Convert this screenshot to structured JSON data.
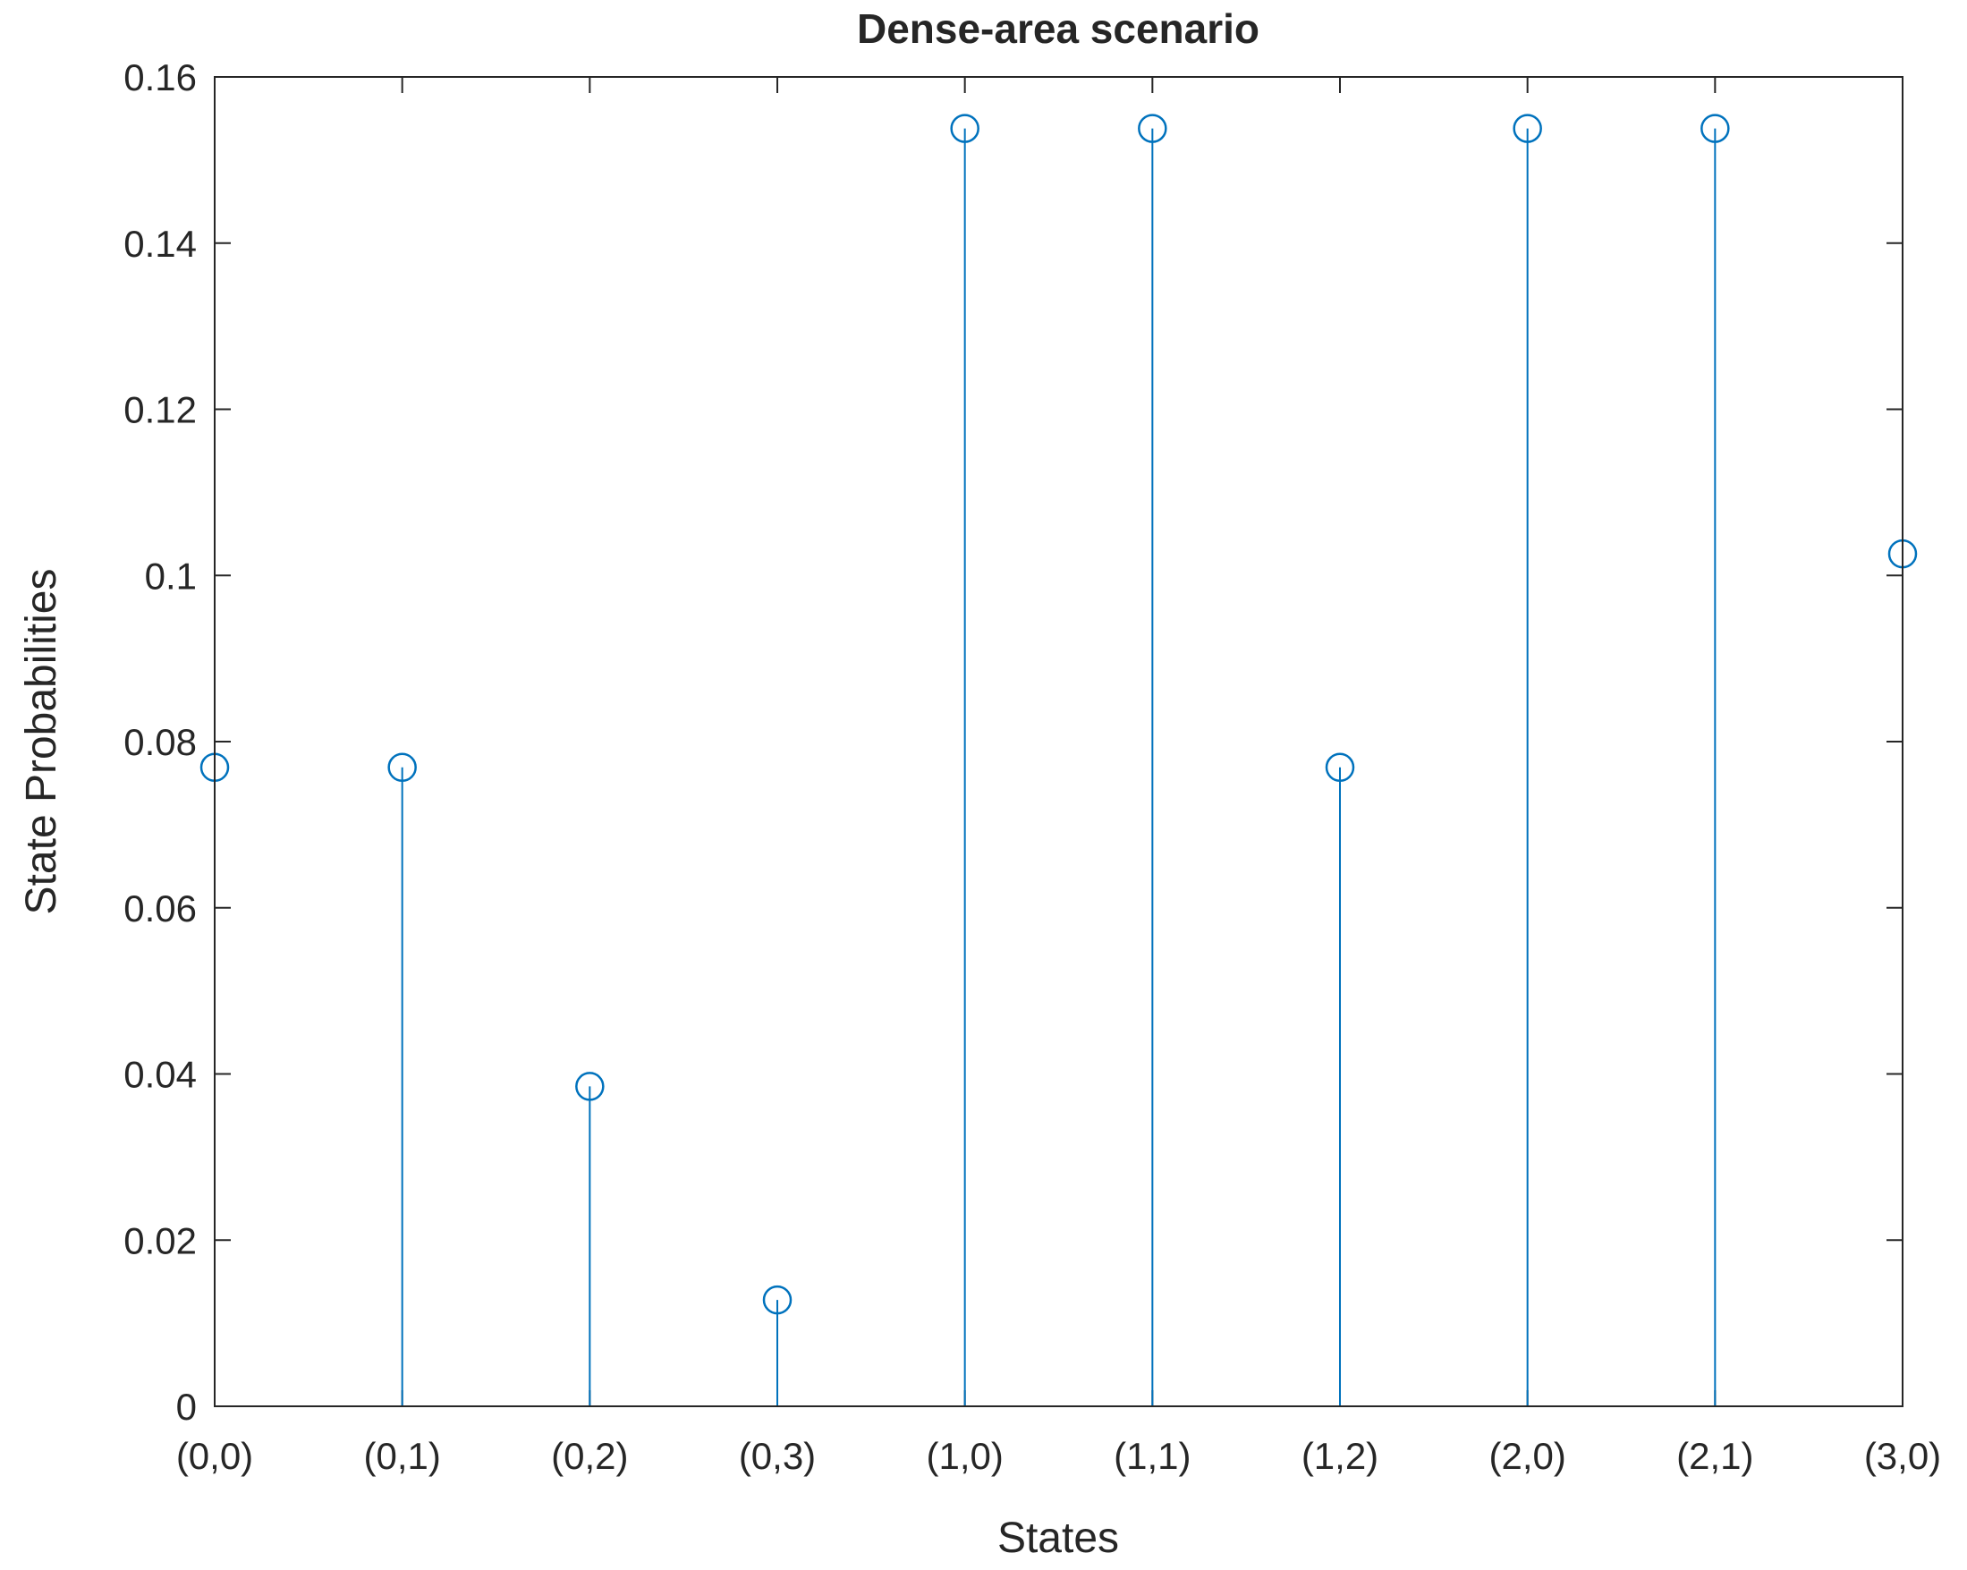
{
  "chart_data": {
    "type": "stem",
    "title": "Dense-area scenario",
    "x_label": "States",
    "y_label": "State Probabilities",
    "categories": [
      "(0,0)",
      "(0,1)",
      "(0,2)",
      "(0,3)",
      "(1,0)",
      "(1,1)",
      "(1,2)",
      "(2,0)",
      "(2,1)",
      "(3,0)"
    ],
    "values": [
      0.0769,
      0.0769,
      0.0385,
      0.0128,
      0.1538,
      0.1538,
      0.0769,
      0.1538,
      0.1538,
      0.1026
    ],
    "color": "#0072bd",
    "ylim": [
      0,
      0.16
    ],
    "yticks": [
      0,
      0.02,
      0.04,
      0.06,
      0.08,
      0.1,
      0.12,
      0.14,
      0.16
    ],
    "grid": false
  }
}
